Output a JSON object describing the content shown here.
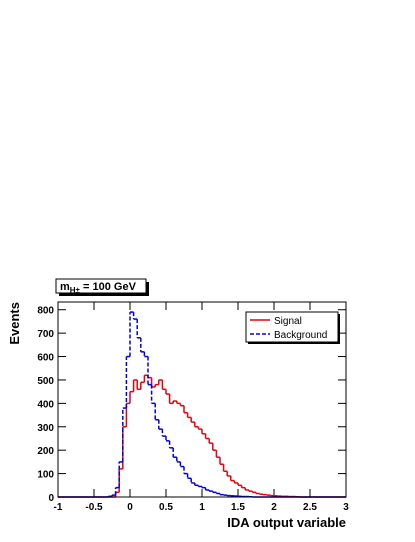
{
  "chart_data": {
    "type": "histogram",
    "annotation": {
      "main": "m",
      "sub": "H±",
      "rest": " = 100 GeV"
    },
    "xlabel": "IDA output variable",
    "ylabel": "Events",
    "xlim": [
      -1,
      3
    ],
    "ylim": [
      0,
      833
    ],
    "xticks": [
      -1,
      -0.5,
      0,
      0.5,
      1,
      1.5,
      2,
      2.5,
      3
    ],
    "yticks": [
      0,
      100,
      200,
      300,
      400,
      500,
      600,
      700,
      800
    ],
    "legend": "upper right",
    "bins": [
      -1,
      -0.95,
      -0.9,
      -0.85,
      -0.8,
      -0.75,
      -0.7,
      -0.65,
      -0.6,
      -0.55,
      -0.5,
      -0.45,
      -0.4,
      -0.35,
      -0.3,
      -0.25,
      -0.2,
      -0.15,
      -0.1,
      -0.05,
      0,
      0.05,
      0.1,
      0.15,
      0.2,
      0.25,
      0.3,
      0.35,
      0.4,
      0.45,
      0.5,
      0.55,
      0.6,
      0.65,
      0.7,
      0.75,
      0.8,
      0.85,
      0.9,
      0.95,
      1,
      1.05,
      1.1,
      1.15,
      1.2,
      1.25,
      1.3,
      1.35,
      1.4,
      1.45,
      1.5,
      1.55,
      1.6,
      1.65,
      1.7,
      1.75,
      1.8,
      1.85,
      1.9,
      1.95,
      2,
      2.05,
      2.1,
      2.15,
      2.2,
      2.25,
      2.3,
      2.35,
      2.4,
      2.45,
      2.5,
      2.55,
      2.6,
      2.65,
      2.7,
      2.75,
      2.8,
      2.85,
      2.9,
      2.95,
      3
    ],
    "series": [
      {
        "name": "Signal",
        "color": "#e8000b",
        "style": "solid",
        "values": [
          0,
          0,
          0,
          0,
          0,
          0,
          0,
          0,
          0,
          0,
          0,
          0,
          0,
          0,
          0,
          0,
          20,
          120,
          300,
          400,
          450,
          500,
          460,
          490,
          520,
          510,
          470,
          480,
          500,
          460,
          440,
          400,
          410,
          400,
          390,
          360,
          340,
          320,
          300,
          290,
          270,
          250,
          230,
          200,
          170,
          140,
          110,
          90,
          70,
          60,
          50,
          40,
          30,
          25,
          20,
          15,
          12,
          10,
          8,
          6,
          5,
          4,
          3,
          3,
          2,
          2,
          1,
          0,
          0,
          0,
          0,
          0,
          0,
          0,
          0,
          0,
          0,
          0,
          0,
          0
        ]
      },
      {
        "name": "Background",
        "color": "#0000e0",
        "style": "dashed",
        "values": [
          0,
          0,
          0,
          0,
          0,
          0,
          0,
          0,
          0,
          0,
          0,
          0,
          0,
          0,
          3,
          8,
          40,
          150,
          380,
          600,
          790,
          760,
          680,
          620,
          600,
          480,
          400,
          330,
          290,
          260,
          240,
          210,
          170,
          150,
          130,
          100,
          80,
          60,
          50,
          45,
          40,
          30,
          25,
          20,
          15,
          10,
          8,
          6,
          5,
          4,
          3,
          2,
          2,
          1,
          0,
          0,
          0,
          0,
          0,
          0,
          0,
          0,
          0,
          0,
          0,
          0,
          0,
          0,
          0,
          0,
          0,
          0,
          0,
          0,
          0,
          0,
          0,
          0,
          0,
          0
        ]
      }
    ]
  }
}
